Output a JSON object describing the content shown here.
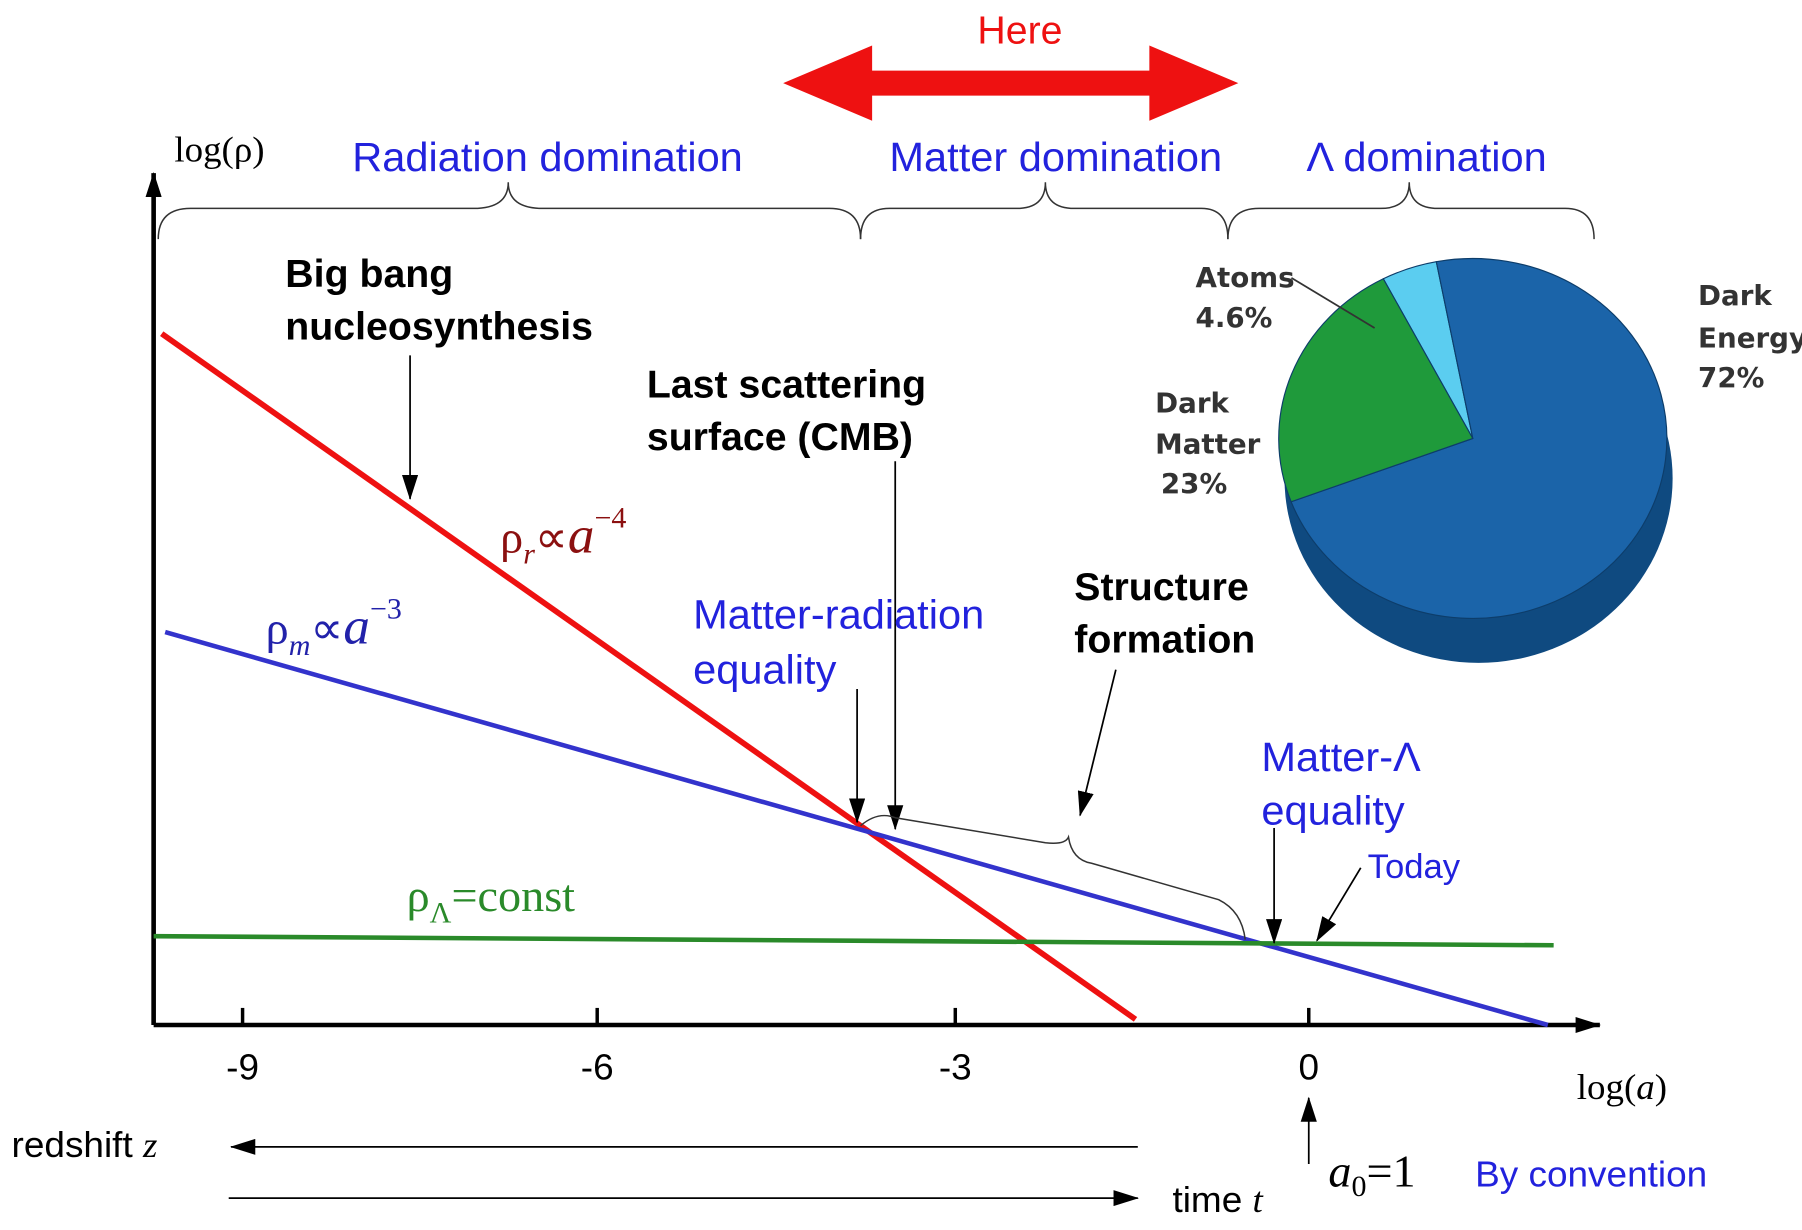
{
  "header": {
    "banner": "Here"
  },
  "eras": [
    "Radiation domination",
    "Matter domination",
    "Λ domination"
  ],
  "axes": {
    "y_label": "log(ρ)",
    "x_label": {
      "prefix": "log(",
      "var": "a",
      "suffix": ")"
    },
    "x_ticks": [
      "-9",
      "-6",
      "-3",
      "0"
    ]
  },
  "curves": {
    "radiation": {
      "symbol": "ρ",
      "subscript": "r",
      "relation": "∝",
      "var": "a",
      "exponent": "−4"
    },
    "matter": {
      "symbol": "ρ",
      "subscript": "m",
      "relation": "∝",
      "var": "a",
      "exponent": "−3"
    },
    "lambda": {
      "symbol": "ρ",
      "subscript": "Λ",
      "relation": "=const"
    }
  },
  "annotations": {
    "bbn": [
      "Big bang",
      "nucleosynthesis"
    ],
    "cmb": [
      "Last scattering",
      "surface (CMB)"
    ],
    "mr_equality": [
      "Matter-radiation",
      "equality"
    ],
    "structure": [
      "Structure",
      "formation"
    ],
    "ml_equality": [
      "Matter-Λ",
      "equality"
    ],
    "today": "Today"
  },
  "pie": {
    "slices": [
      {
        "name_lines": [
          "Atoms"
        ],
        "value": 4.6,
        "value_label": "4.6%",
        "color": "#5bcdf0"
      },
      {
        "name_lines": [
          "Dark",
          "Energy"
        ],
        "value": 72,
        "value_label": "72%",
        "color": "#1b64a9"
      },
      {
        "name_lines": [
          "Dark",
          "Matter"
        ],
        "value": 23,
        "value_label": "23%",
        "color": "#1f9a3b"
      }
    ]
  },
  "footer": {
    "redshift": {
      "text": "redshift ",
      "var": "z"
    },
    "time": {
      "text": "time ",
      "var": "t"
    },
    "a0": {
      "var": "a",
      "subscript": "0",
      "rest": "=1"
    },
    "convention": "By convention"
  }
}
